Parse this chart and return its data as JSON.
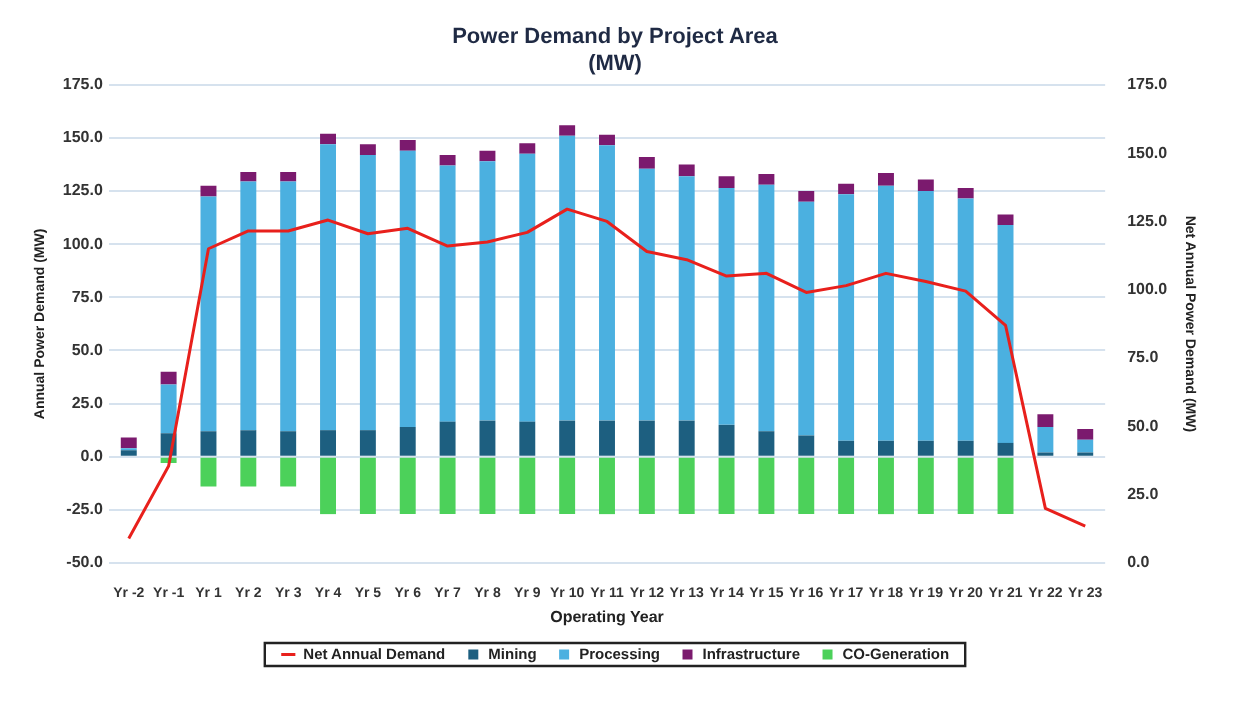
{
  "chart_data": {
    "type": "bar",
    "title": "Power Demand by Project Area",
    "subtitle": "(MW)",
    "xlabel": "Operating Year",
    "ylabel": "Annual Power Demand (MW)",
    "y2label": "Net Annual Power Demand (MW)",
    "categories": [
      "Yr -2",
      "Yr -1",
      "Yr 1",
      "Yr 2",
      "Yr 3",
      "Yr 4",
      "Yr 5",
      "Yr 6",
      "Yr 7",
      "Yr 8",
      "Yr 9",
      "Yr 10",
      "Yr 11",
      "Yr 12",
      "Yr 13",
      "Yr 14",
      "Yr 15",
      "Yr 16",
      "Yr 17",
      "Yr 18",
      "Yr 19",
      "Yr 20",
      "Yr 21",
      "Yr 22",
      "Yr 23"
    ],
    "stacked": true,
    "series": [
      {
        "name": "Mining",
        "color": "#1d5f80",
        "values": [
          3,
          11,
          12,
          12.5,
          12,
          12.5,
          12.5,
          14,
          16.5,
          17,
          16.5,
          17,
          17,
          17,
          17,
          15,
          12,
          10,
          7.5,
          7.5,
          7.5,
          7.5,
          6.5,
          2,
          2
        ]
      },
      {
        "name": "Processing",
        "color": "#4bb0e0",
        "values": [
          1,
          23,
          110.5,
          117,
          117.5,
          134.5,
          129.5,
          130,
          120.5,
          122,
          126,
          134,
          129.5,
          118.5,
          115,
          111.5,
          116,
          110,
          116,
          120,
          117.5,
          114,
          102.5,
          12,
          6
        ]
      },
      {
        "name": "Infrastructure",
        "color": "#7b1a6e",
        "values": [
          5,
          6,
          5,
          4.5,
          4.5,
          5,
          5,
          5,
          5,
          5,
          5,
          5,
          5,
          5.5,
          5.5,
          5.5,
          5,
          5,
          5,
          6,
          5.5,
          5,
          5,
          6,
          5
        ]
      },
      {
        "name": "CO-Generation",
        "color": "#4cd15a",
        "values": [
          0,
          -3,
          -14,
          -14,
          -14,
          -27,
          -27,
          -27,
          -27,
          -27,
          -27,
          -27,
          -27,
          -27,
          -27,
          -27,
          -27,
          -27,
          -27,
          -27,
          -27,
          -27,
          -27,
          0,
          0
        ]
      },
      {
        "name": "Net Annual Demand",
        "type": "line",
        "axis": "y2",
        "color": "#e8201c",
        "marker": "none",
        "values": [
          9,
          35.5,
          115,
          121.5,
          121.5,
          125.5,
          120.5,
          122.5,
          116,
          117.5,
          121,
          129.5,
          125,
          114,
          111,
          105,
          106,
          99,
          101.5,
          106,
          103,
          99.5,
          87,
          20,
          13.5
        ]
      }
    ],
    "ylim": [
      -50,
      175
    ],
    "yticks": [
      {
        "value": -50,
        "label": "-50.0"
      },
      {
        "value": -25,
        "label": "-25.0"
      },
      {
        "value": 0,
        "label": "0.0"
      },
      {
        "value": 25,
        "label": "25.0"
      },
      {
        "value": 50,
        "label": "50.0"
      },
      {
        "value": 75,
        "label": "75.0"
      },
      {
        "value": 100,
        "label": "100.0"
      },
      {
        "value": 125,
        "label": "125.0"
      },
      {
        "value": 150,
        "label": "150.0"
      },
      {
        "value": 175,
        "label": "175.0"
      }
    ],
    "y2lim": [
      0,
      175
    ],
    "y2ticks": [
      {
        "value": 0,
        "label": "0.0"
      },
      {
        "value": 25,
        "label": "25.0"
      },
      {
        "value": 50,
        "label": "50.0"
      },
      {
        "value": 75,
        "label": "75.0"
      },
      {
        "value": 100,
        "label": "100.0"
      },
      {
        "value": 125,
        "label": "125.0"
      },
      {
        "value": 150,
        "label": "150.0"
      },
      {
        "value": 175,
        "label": "175.0"
      }
    ],
    "grid": "y",
    "legend": "bottom"
  }
}
